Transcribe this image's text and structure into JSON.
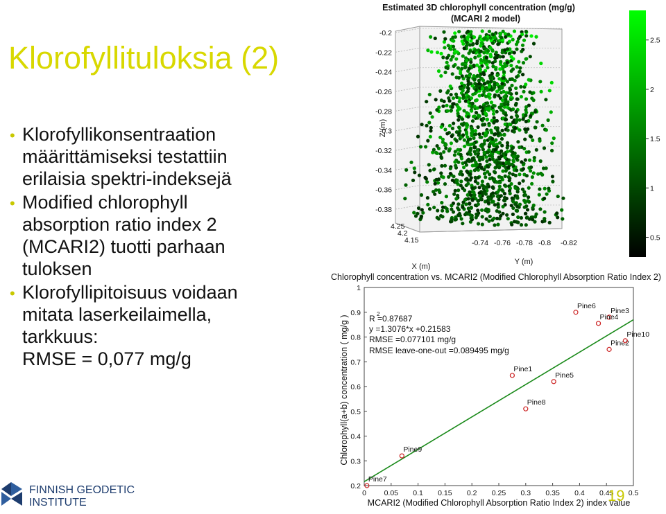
{
  "slide": {
    "title": "Klorofyllituloksia (2)",
    "bullets": [
      "Klorofyllikonsentraation\nmäärittämiseksi testattiin\nerilaisia spektri-indeksejä",
      "Modified chlorophyll\nabsorption ratio index 2\n(MCARI2) tuotti parhaan\ntuloksen",
      "Klorofyllipitoisuus voidaan\nmitata laserkeilaimella,\ntarkkuus:\nRMSE = 0,077 mg/g"
    ],
    "page_number": "19",
    "logo": {
      "line1": "FINNISH GEODETIC",
      "line2": "INSTITUTE",
      "icon": "fgi-logo-icon"
    },
    "colors": {
      "accent": "#c8c800",
      "title": "#d8d800"
    }
  },
  "chart_data": [
    {
      "type": "scatter",
      "title": "Estimated 3D chlorophyll concentration (mg/g)",
      "subtitle": "(MCARI 2 model)",
      "xlabel": "X (m)",
      "ylabel": "Y (m)",
      "zlabel": "Z (m)",
      "x_ticks": [
        "4.25",
        "4.2",
        "4.15"
      ],
      "y_ticks": [
        "-0.74",
        "-0.76",
        "-0.78",
        "-0.8",
        "-0.82"
      ],
      "z_ticks": [
        "-0.2",
        "-0.22",
        "-0.24",
        "-0.26",
        "-0.28",
        "-0.3",
        "-0.32",
        "-0.34",
        "-0.36",
        "-0.38"
      ],
      "colorbar": {
        "ticks": [
          "2.5",
          "2",
          "1.5",
          "1",
          "0.5"
        ],
        "range": [
          0.3,
          2.8
        ],
        "colors": [
          "#000000",
          "#00ff00"
        ]
      }
    },
    {
      "type": "scatter",
      "title": "Chlorophyll concentration vs. MCARI2 (Modified Chlorophyll Absorption Ratio Index 2)",
      "xlabel": "MCARI2 (Modified Chlorophyll Absorption Ratio Index 2) index value",
      "ylabel": "Chlorophyll(a+b) concentration ( mg/g )",
      "xlim": [
        0,
        0.5
      ],
      "ylim": [
        0.2,
        1
      ],
      "x_ticks": [
        "0",
        "0.05",
        "0.1",
        "0.15",
        "0.2",
        "0.25",
        "0.3",
        "0.35",
        "0.4",
        "0.45",
        "0.5"
      ],
      "y_ticks": [
        "0.2",
        "0.3",
        "0.4",
        "0.5",
        "0.6",
        "0.7",
        "0.8",
        "0.9",
        "1"
      ],
      "points": [
        {
          "name": "Pine7",
          "x": 0.005,
          "y": 0.2
        },
        {
          "name": "Pine9",
          "x": 0.07,
          "y": 0.32
        },
        {
          "name": "Pine8",
          "x": 0.3,
          "y": 0.51
        },
        {
          "name": "Pine1",
          "x": 0.275,
          "y": 0.645
        },
        {
          "name": "Pine5",
          "x": 0.352,
          "y": 0.62
        },
        {
          "name": "Pine6",
          "x": 0.393,
          "y": 0.9
        },
        {
          "name": "Pine3",
          "x": 0.455,
          "y": 0.88
        },
        {
          "name": "Pine4",
          "x": 0.435,
          "y": 0.855
        },
        {
          "name": "Pine2",
          "x": 0.455,
          "y": 0.75
        },
        {
          "name": "Pine10",
          "x": 0.485,
          "y": 0.785
        }
      ],
      "fit_line": {
        "slope": 1.3076,
        "intercept": 0.21583,
        "x_range": [
          0,
          0.5
        ],
        "color": "#1a8a1a"
      },
      "annotations": {
        "r2": "R  =0.87687",
        "r2_sup": "2",
        "equation": "y =1.3076*x +0.21583",
        "rmse": "RMSE =0.077101 mg/g",
        "rmse_loo": "RMSE leave-one-out =0.089495 mg/g"
      },
      "marker_color": "#cc2222"
    }
  ]
}
